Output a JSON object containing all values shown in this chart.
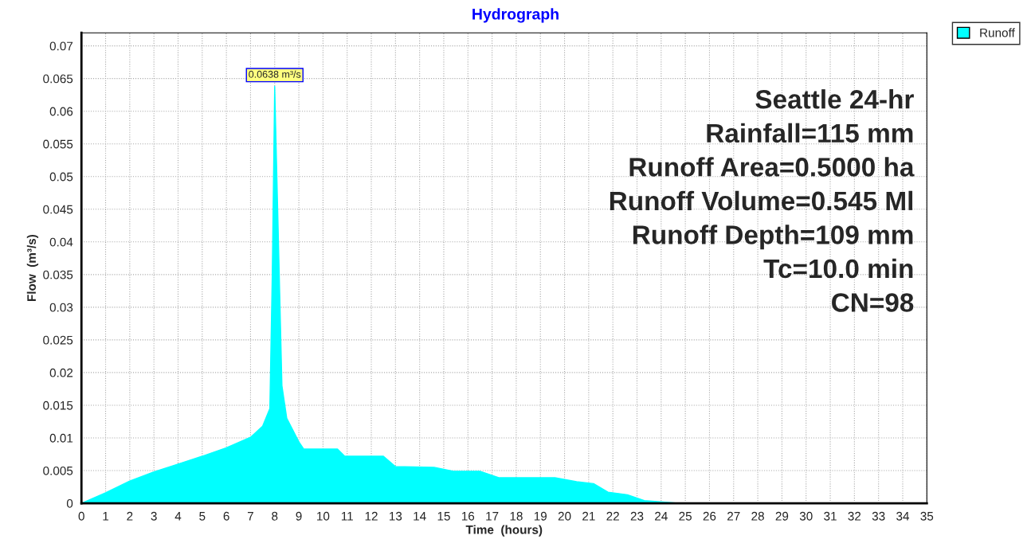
{
  "chart_data": {
    "type": "area",
    "title": "Hydrograph",
    "xlabel": "Time  (hours)",
    "ylabel": "Flow  (m³/s)",
    "x": [
      0,
      1,
      2,
      3,
      4,
      5,
      6,
      7,
      7.5,
      7.8,
      7.9,
      8.0,
      8.3,
      8.5,
      9.0,
      9.2,
      10.6,
      10.9,
      12.5,
      13.0,
      14.6,
      15.4,
      16.5,
      17.3,
      19.6,
      20.5,
      21.2,
      21.8,
      22.6,
      23.3,
      24.7,
      35
    ],
    "series": [
      {
        "name": "Runoff",
        "color": "#00ffff",
        "values": [
          0,
          0.0016,
          0.0034,
          0.0048,
          0.006,
          0.0072,
          0.0085,
          0.0101,
          0.0118,
          0.0145,
          0.035,
          0.0638,
          0.018,
          0.013,
          0.0094,
          0.0083,
          0.0083,
          0.0072,
          0.0072,
          0.0056,
          0.0055,
          0.0049,
          0.0049,
          0.0039,
          0.0039,
          0.0033,
          0.003,
          0.0017,
          0.0013,
          0.0004,
          0,
          0
        ]
      }
    ],
    "xlim": [
      0,
      35
    ],
    "xticks": [
      0,
      1,
      2,
      3,
      4,
      5,
      6,
      7,
      8,
      9,
      10,
      11,
      12,
      13,
      14,
      15,
      16,
      17,
      18,
      19,
      20,
      21,
      22,
      23,
      24,
      25,
      26,
      27,
      28,
      29,
      30,
      31,
      32,
      33,
      34,
      35
    ],
    "ylim": [
      0,
      0.072
    ],
    "yticks": [
      0,
      0.005,
      0.01,
      0.015,
      0.02,
      0.025,
      0.03,
      0.035,
      0.04,
      0.045,
      0.05,
      0.055,
      0.06,
      0.065,
      0.07
    ],
    "grid": true,
    "legend": "top right",
    "annotations": [
      {
        "text": "0.0638 m³/s",
        "x": 8.0,
        "y": 0.0638
      },
      "Seattle 24-hr",
      "Rainfall=115 mm",
      "Runoff Area=0.5000 ha",
      "Runoff Volume=0.545 Ml",
      "Runoff Depth=109 mm",
      "Tc=10.0 min",
      "CN=98"
    ]
  }
}
